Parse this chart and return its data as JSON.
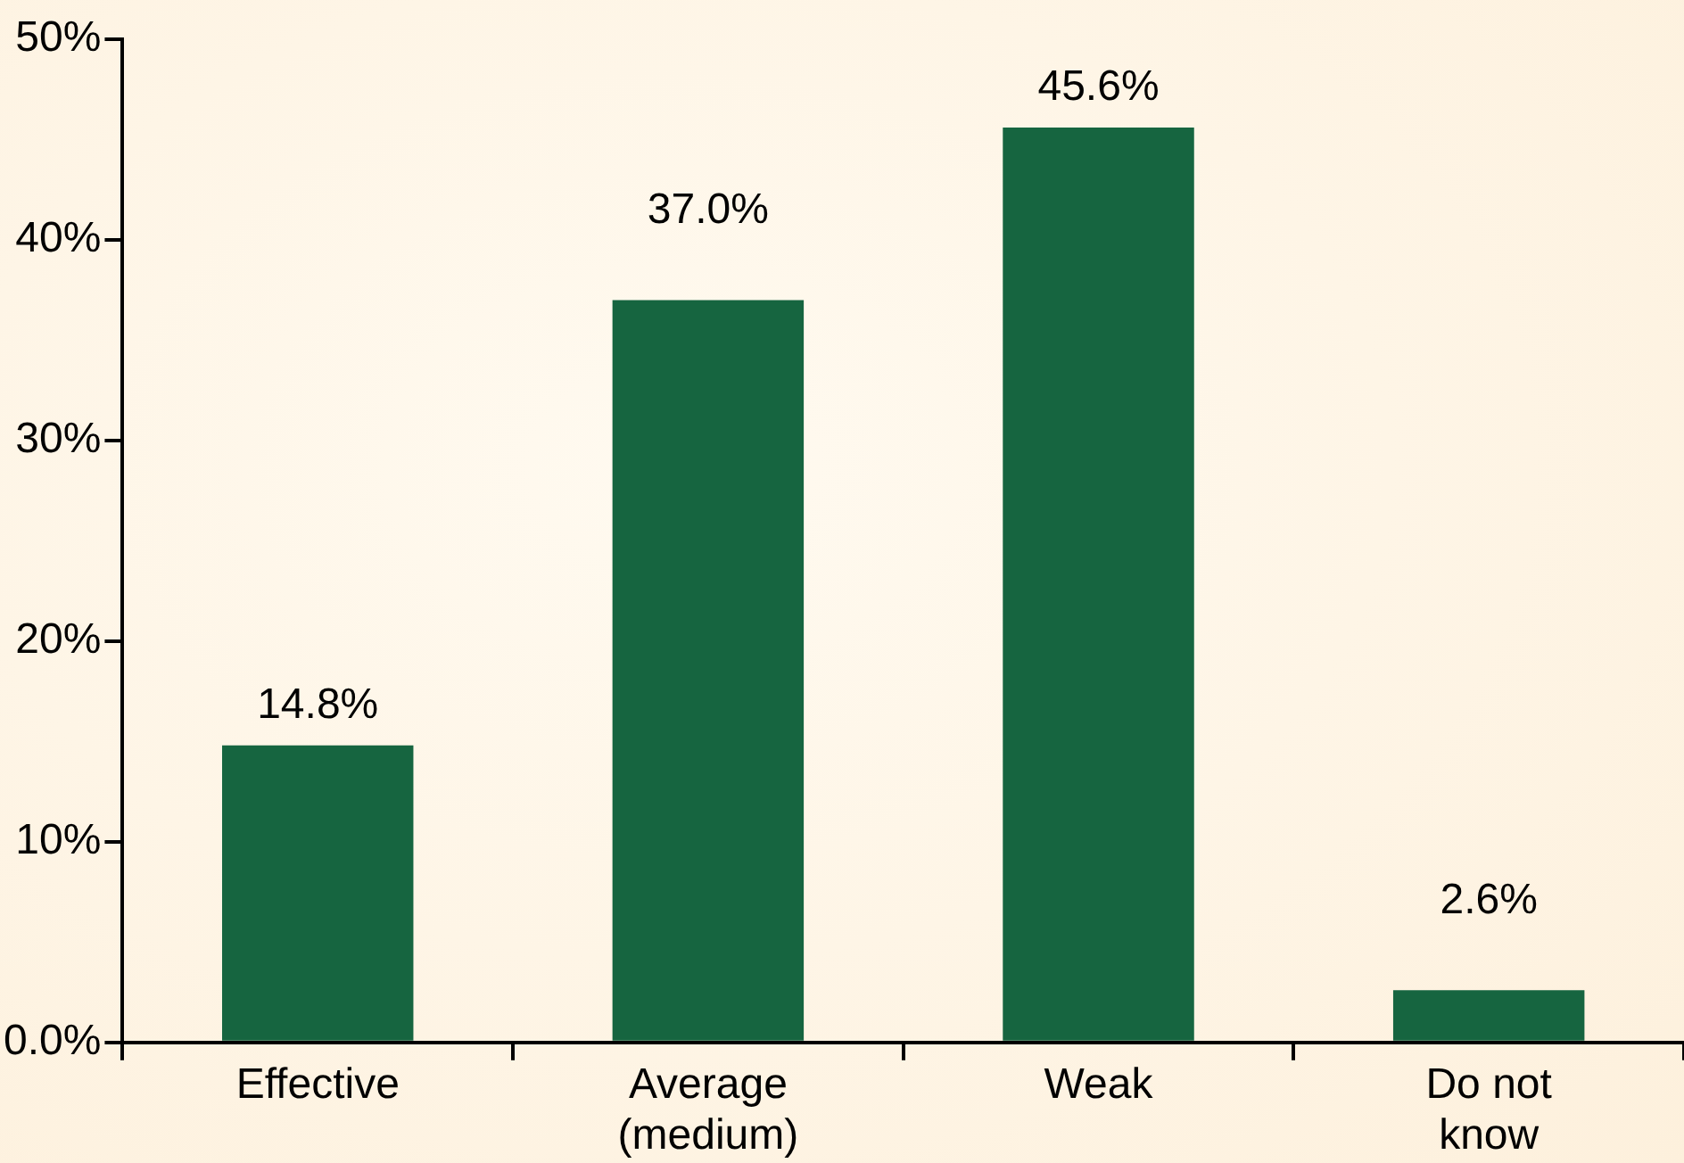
{
  "chart_data": {
    "type": "bar",
    "categories": [
      "Effective",
      "Average (medium)",
      "Weak",
      "Do not know"
    ],
    "values": [
      14.8,
      37.0,
      45.6,
      2.6
    ],
    "value_labels": [
      "14.8%",
      "37.0%",
      "45.6%",
      "2.6%"
    ],
    "color": "#166540",
    "ylim": [
      0,
      50
    ],
    "yticks": [
      {
        "value": 0,
        "label": "0.0%"
      },
      {
        "value": 10,
        "label": "10%"
      },
      {
        "value": 20,
        "label": "20%"
      },
      {
        "value": 30,
        "label": "30%"
      },
      {
        "value": 40,
        "label": "40%"
      },
      {
        "value": 50,
        "label": "50%"
      }
    ],
    "grid": false,
    "legend": false
  }
}
